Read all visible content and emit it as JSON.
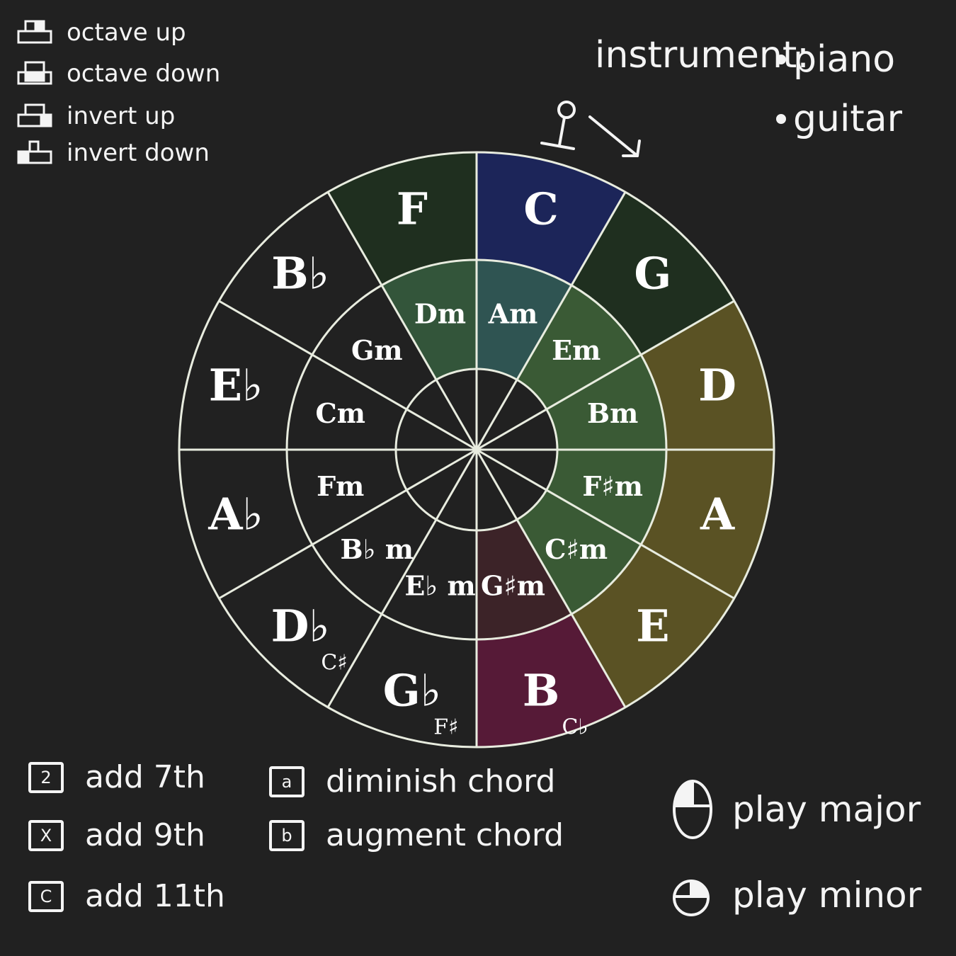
{
  "keyboard_legend": [
    {
      "icon": "keys-octave-up-icon",
      "label": "octave up"
    },
    {
      "icon": "keys-octave-down-icon",
      "label": "octave down"
    },
    {
      "icon": "keys-invert-up-icon",
      "label": "invert up"
    },
    {
      "icon": "keys-invert-down-icon",
      "label": "invert down"
    }
  ],
  "instrument": {
    "title": "instrument:",
    "options": [
      "piano",
      "guitar"
    ]
  },
  "colors": {
    "background": "#212121",
    "line": "#e8ecdf",
    "C": "#1c2559",
    "F": "#1f2f1f",
    "G": "#1f2f1f",
    "D": "#5a5224",
    "A": "#5a5224",
    "E": "#5a5224",
    "B": "#561a37",
    "Am": "#2f5452",
    "Dm": "#33553a",
    "Em": "#3a5a35",
    "Bm": "#3a5a35",
    "Fsm": "#3a5a35",
    "Csm": "#3a5a35",
    "Gsm": "#3c2328",
    "dark": "#212121"
  },
  "wheel": {
    "major": [
      {
        "key": "C",
        "label": "C",
        "sub": ""
      },
      {
        "key": "G",
        "label": "G",
        "sub": ""
      },
      {
        "key": "D",
        "label": "D",
        "sub": ""
      },
      {
        "key": "A",
        "label": "A",
        "sub": ""
      },
      {
        "key": "E",
        "label": "E",
        "sub": ""
      },
      {
        "key": "B",
        "label": "B",
        "sub": "C♭"
      },
      {
        "key": "Gb",
        "label": "G♭",
        "sub": "F♯"
      },
      {
        "key": "Db",
        "label": "D♭",
        "sub": "C♯"
      },
      {
        "key": "Ab",
        "label": "A♭",
        "sub": ""
      },
      {
        "key": "Eb",
        "label": "E♭",
        "sub": ""
      },
      {
        "key": "Bb",
        "label": "B♭",
        "sub": ""
      },
      {
        "key": "F",
        "label": "F",
        "sub": ""
      }
    ],
    "minor": [
      {
        "key": "Am",
        "label": "Am"
      },
      {
        "key": "Em",
        "label": "Em"
      },
      {
        "key": "Bm",
        "label": "Bm"
      },
      {
        "key": "Fsm",
        "label": "F♯m"
      },
      {
        "key": "Csm",
        "label": "C♯m"
      },
      {
        "key": "Gsm",
        "label": "G♯m"
      },
      {
        "key": "Ebm",
        "label": "E♭ m"
      },
      {
        "key": "Bbm",
        "label": "B♭ m"
      },
      {
        "key": "Fm",
        "label": "Fm"
      },
      {
        "key": "Cm",
        "label": "Cm"
      },
      {
        "key": "Gm",
        "label": "Gm"
      },
      {
        "key": "Dm",
        "label": "Dm"
      }
    ]
  },
  "chord_options": [
    {
      "key": "2",
      "label": "add 7th"
    },
    {
      "key": "X",
      "label": "add 9th"
    },
    {
      "key": "C",
      "label": "add 11th"
    },
    {
      "key": "a",
      "label": "diminish chord"
    },
    {
      "key": "b",
      "label": "augment chord"
    }
  ],
  "play": [
    {
      "icon": "mouse-left-click-icon",
      "label": "play major"
    },
    {
      "icon": "mouse-right-click-icon",
      "label": "play minor"
    }
  ]
}
